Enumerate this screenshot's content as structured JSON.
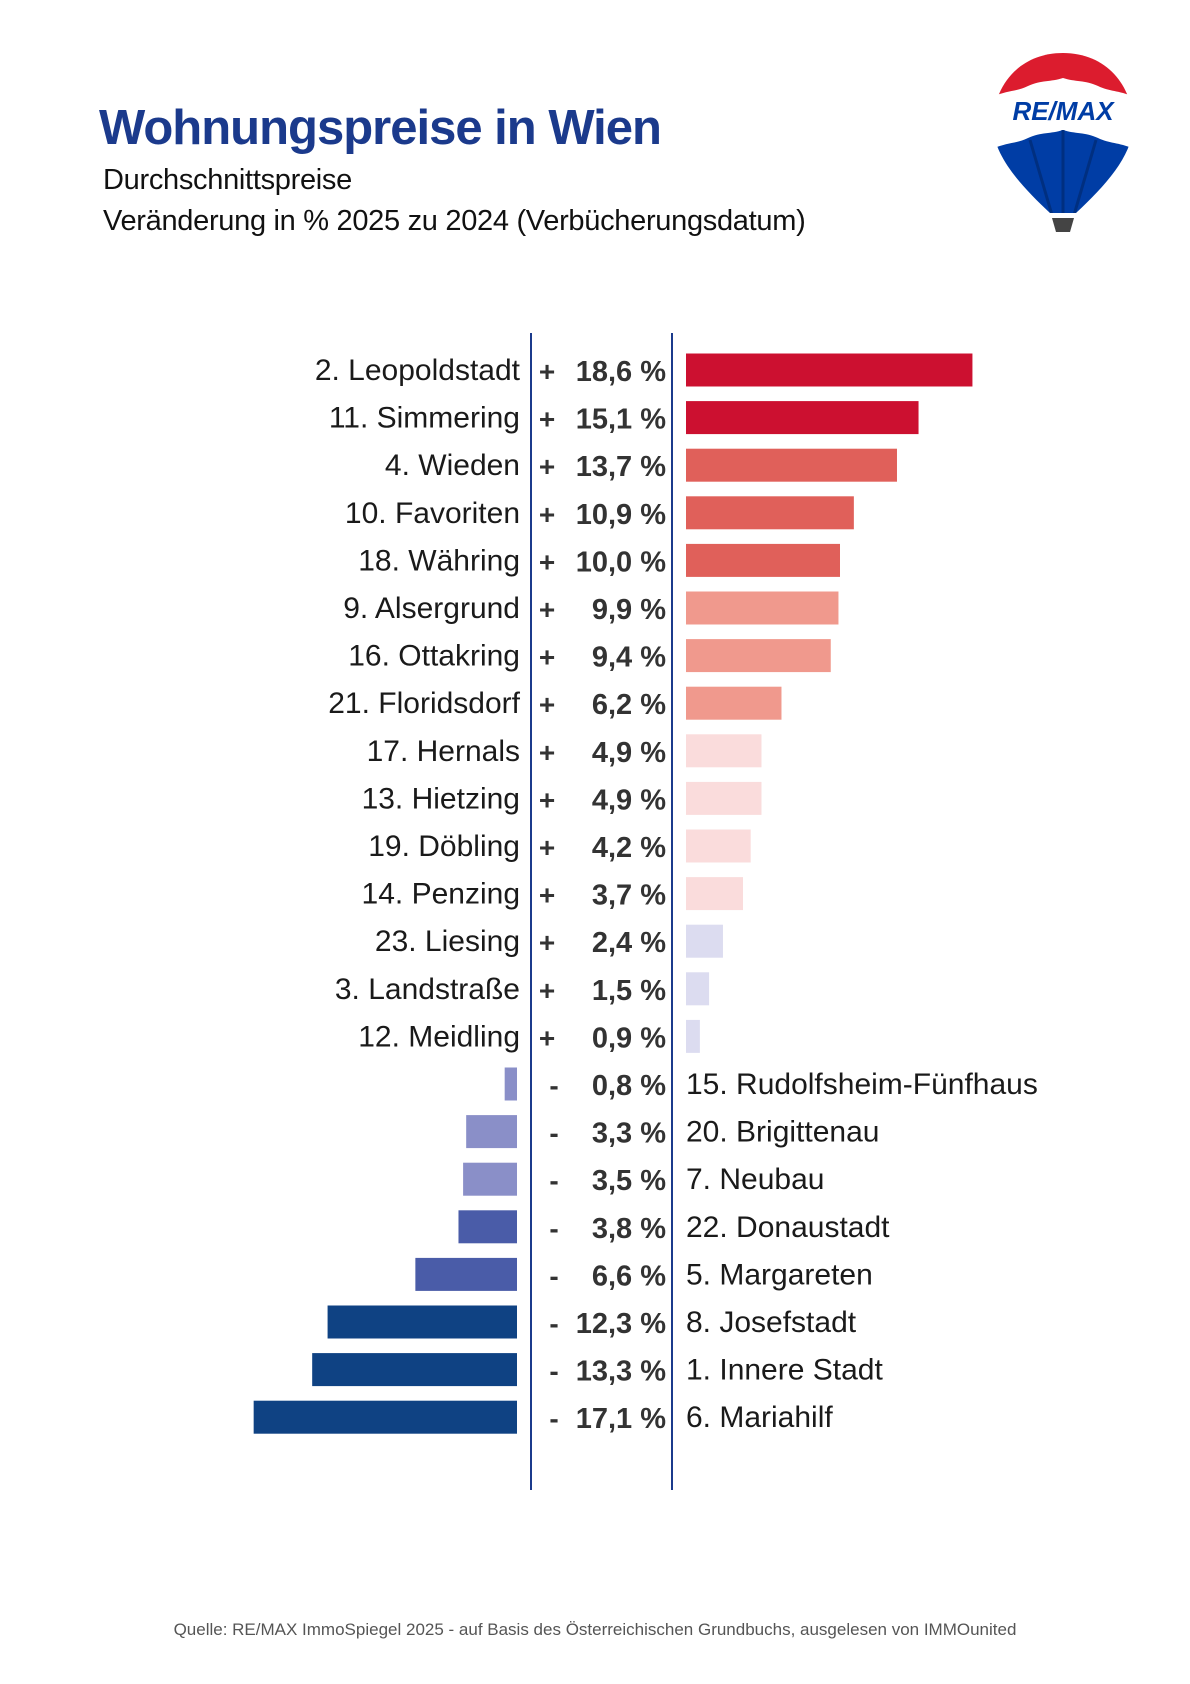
{
  "header": {
    "title": "Wohnungspreise in Wien",
    "subtitle_1": "Durchschnittspreise",
    "subtitle_2": "Veränderung in % 2025 zu 2024 (Verbücherungsdatum)"
  },
  "logo": {
    "text": "RE/MAX",
    "colors": {
      "red": "#dc1c2e",
      "white": "#ffffff",
      "blue": "#003da5"
    }
  },
  "chart_data": {
    "type": "bar",
    "orientation": "horizontal-diverging",
    "unit": "%",
    "categories": [
      "2. Leopoldstadt",
      "11. Simmering",
      "4. Wieden",
      "10. Favoriten",
      "18. Währing",
      "9. Alsergrund",
      "16. Ottakring",
      "21. Floridsdorf",
      "17. Hernals",
      "13. Hietzing",
      "19. Döbling",
      "14. Penzing",
      "23. Liesing",
      "3. Landstraße",
      "12. Meidling",
      "15. Rudolfsheim-Fünfhaus",
      "20. Brigittenau",
      "7. Neubau",
      "22. Donaustadt",
      "5. Margareten",
      "8. Josefstadt",
      "1. Innere Stadt",
      "6. Mariahilf"
    ],
    "values": [
      18.6,
      15.1,
      13.7,
      10.9,
      10.0,
      9.9,
      9.4,
      6.2,
      4.9,
      4.9,
      4.2,
      3.7,
      2.4,
      1.5,
      0.9,
      -0.8,
      -3.3,
      -3.5,
      -3.8,
      -6.6,
      -12.3,
      -13.3,
      -17.1
    ],
    "signs": [
      "+",
      "+",
      "+",
      "+",
      "+",
      "+",
      "+",
      "+",
      "+",
      "+",
      "+",
      "+",
      "+",
      "+",
      "+",
      "-",
      "-",
      "-",
      "-",
      "-",
      "-",
      "-",
      "-"
    ],
    "labels": [
      "18,6 %",
      "15,1 %",
      "13,7 %",
      "10,9 %",
      "10,0 %",
      "9,9 %",
      "9,4 %",
      "6,2 %",
      "4,9 %",
      "4,9 %",
      "4,2 %",
      "3,7 %",
      "2,4 %",
      "1,5 %",
      "0,9 %",
      "0,8 %",
      "3,3 %",
      "3,5 %",
      "3,8 %",
      "6,6 %",
      "12,3 %",
      "13,3 %",
      "17,1 %"
    ],
    "colors": [
      "#cc1030",
      "#cc1030",
      "#e0605a",
      "#e0605a",
      "#e0605a",
      "#f0998d",
      "#f0998d",
      "#f0998d",
      "#fadcdc",
      "#fadcdc",
      "#fadcdc",
      "#fadcdc",
      "#dcdcf0",
      "#dcdcf0",
      "#dcdcf0",
      "#8a8fc8",
      "#8a8fc8",
      "#8a8fc8",
      "#4a5ca8",
      "#4a5ca8",
      "#0f4283",
      "#0f4283",
      "#0f4283"
    ],
    "divider_color": "#1b3a8c",
    "grid": false,
    "legend": "none"
  },
  "footer": {
    "source": "Quelle: RE/MAX ImmoSpiegel 2025 - auf Basis des Österreichischen Grundbuchs, ausgelesen von IMMOunited"
  }
}
